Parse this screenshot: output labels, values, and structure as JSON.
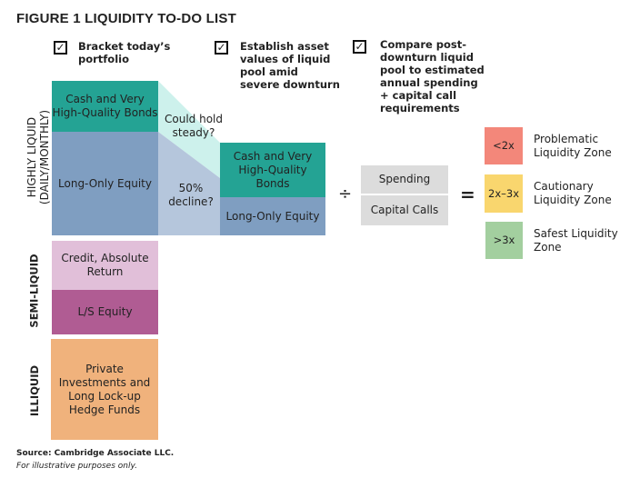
{
  "title": "FIGURE 1  LIQUIDITY TO-DO LIST",
  "steps": [
    "Bracket today’s portfolio",
    "Establish asset values of liquid pool amid severe downturn",
    "Compare post-downturn liquid pool to estimated annual spending + capital call requirements"
  ],
  "categories": {
    "highly_liquid": "HIGHLY LIQUID",
    "highly_liquid_sub": "(DAILY/MONTHLY)",
    "semi_liquid": "SEMI-LIQUID",
    "illiquid": "ILLIQUID"
  },
  "boxes": {
    "cash": "Cash and Very High-Quality Bonds",
    "equity": "Long-Only Equity",
    "credit": "Credit, Absolute Return",
    "ls": "L/S Equity",
    "private": "Private Investments and Long Lock-up Hedge Funds"
  },
  "scenarios": {
    "steady": "Could hold steady?",
    "decline": "50% decline?"
  },
  "operators": {
    "divide": "÷",
    "equals": "="
  },
  "denominator": {
    "spending": "Spending",
    "capital_calls": "Capital Calls"
  },
  "zones": [
    {
      "ratio": "<2x",
      "label": "Problematic Liquidity Zone",
      "color": "#f3877a"
    },
    {
      "ratio": "2x–3x",
      "label": "Cautionary Liquidity Zone",
      "color": "#f9d66e"
    },
    {
      "ratio": ">3x",
      "label": "Safest Liquidity Zone",
      "color": "#a3cf9f"
    }
  ],
  "source": "Source: Cambridge Associate LLC.",
  "note": "For illustrative purposes only."
}
